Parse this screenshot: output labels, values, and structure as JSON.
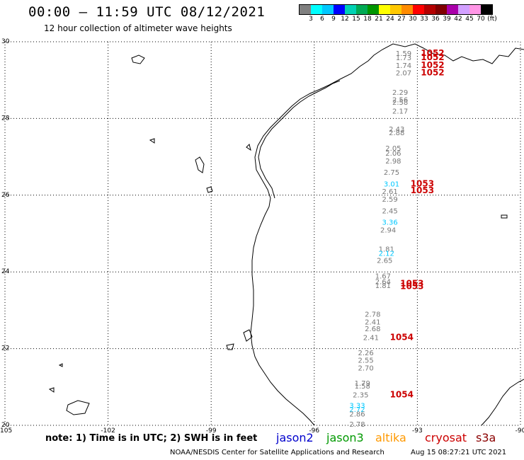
{
  "header": {
    "title": "00:00 – 11:59 UTC 08/12/2021",
    "subtitle": "12 hour collection of altimeter wave heights"
  },
  "legend": {
    "colors": [
      "#808080",
      "#00ffff",
      "#00c8ff",
      "#0000ff",
      "#00d2b4",
      "#00aa55",
      "#009600",
      "#ffff00",
      "#ffc800",
      "#ff8c00",
      "#ff0000",
      "#b40000",
      "#800000",
      "#aa00aa",
      "#d2a0ff",
      "#ff96e6",
      "#000000"
    ],
    "labels": [
      "3",
      "6",
      "9",
      "12",
      "15",
      "18",
      "21",
      "24",
      "27",
      "30",
      "33",
      "36",
      "39",
      "42",
      "45",
      "70"
    ],
    "unit": "(ft)"
  },
  "axes": {
    "lon_ticks": [
      "-105",
      "-102",
      "-99",
      "-96",
      "-93",
      "-90"
    ],
    "lat_ticks": [
      "30",
      "28",
      "26",
      "24",
      "22",
      "20"
    ]
  },
  "observations": [
    {
      "lon": -93.4,
      "lat": 29.63,
      "text": "1.59",
      "sat": "gray"
    },
    {
      "lon": -93.4,
      "lat": 29.52,
      "text": "1.73",
      "sat": "gray"
    },
    {
      "lon": -93.4,
      "lat": 29.32,
      "text": "1.74",
      "sat": "gray"
    },
    {
      "lon": -93.4,
      "lat": 29.12,
      "text": "2.07",
      "sat": "gray"
    },
    {
      "lon": -93.5,
      "lat": 28.62,
      "text": "2.29",
      "sat": "gray"
    },
    {
      "lon": -93.5,
      "lat": 28.42,
      "text": "2.56",
      "sat": "gray"
    },
    {
      "lon": -93.5,
      "lat": 28.36,
      "text": "2.58",
      "sat": "gray"
    },
    {
      "lon": -93.5,
      "lat": 28.13,
      "text": "2.17",
      "sat": "gray"
    },
    {
      "lon": -93.6,
      "lat": 27.66,
      "text": "2.43",
      "sat": "gray"
    },
    {
      "lon": -93.6,
      "lat": 27.56,
      "text": "2.88",
      "sat": "gray"
    },
    {
      "lon": -93.7,
      "lat": 27.16,
      "text": "2.05",
      "sat": "gray"
    },
    {
      "lon": -93.7,
      "lat": 27.03,
      "text": "2.06",
      "sat": "gray"
    },
    {
      "lon": -93.7,
      "lat": 26.83,
      "text": "2.98",
      "sat": "gray"
    },
    {
      "lon": -93.75,
      "lat": 26.53,
      "text": "2.75",
      "sat": "gray"
    },
    {
      "lon": -93.75,
      "lat": 26.23,
      "text": "3.01",
      "sat": "jason3"
    },
    {
      "lon": -93.8,
      "lat": 26.03,
      "text": "2.61",
      "sat": "gray"
    },
    {
      "lon": -93.8,
      "lat": 25.83,
      "text": "2.59",
      "sat": "gray"
    },
    {
      "lon": -93.8,
      "lat": 25.53,
      "text": "2.45",
      "sat": "gray"
    },
    {
      "lon": -93.8,
      "lat": 25.23,
      "text": "3.36",
      "sat": "jason3"
    },
    {
      "lon": -93.85,
      "lat": 25.03,
      "text": "2.94",
      "sat": "gray"
    },
    {
      "lon": -93.9,
      "lat": 24.53,
      "text": "1.81",
      "sat": "gray"
    },
    {
      "lon": -93.9,
      "lat": 24.42,
      "text": "2.12",
      "sat": "jason3"
    },
    {
      "lon": -93.95,
      "lat": 24.23,
      "text": "2.65",
      "sat": "gray"
    },
    {
      "lon": -94.0,
      "lat": 23.83,
      "text": "1.67",
      "sat": "gray"
    },
    {
      "lon": -94.0,
      "lat": 23.68,
      "text": "2.64",
      "sat": "gray"
    },
    {
      "lon": -94.0,
      "lat": 23.58,
      "text": "1.81",
      "sat": "gray"
    },
    {
      "lon": -94.3,
      "lat": 22.83,
      "text": "2.78",
      "sat": "gray"
    },
    {
      "lon": -94.3,
      "lat": 22.63,
      "text": "2.41",
      "sat": "gray"
    },
    {
      "lon": -94.3,
      "lat": 22.45,
      "text": "2.68",
      "sat": "gray"
    },
    {
      "lon": -94.35,
      "lat": 22.22,
      "text": "2.41",
      "sat": "gray"
    },
    {
      "lon": -94.5,
      "lat": 21.83,
      "text": "2.26",
      "sat": "gray"
    },
    {
      "lon": -94.5,
      "lat": 21.63,
      "text": "2.55",
      "sat": "gray"
    },
    {
      "lon": -94.5,
      "lat": 21.43,
      "text": "2.70",
      "sat": "gray"
    },
    {
      "lon": -94.6,
      "lat": 21.03,
      "text": "1.79",
      "sat": "gray"
    },
    {
      "lon": -94.6,
      "lat": 20.96,
      "text": "1.58",
      "sat": "gray"
    },
    {
      "lon": -94.65,
      "lat": 20.73,
      "text": "2.35",
      "sat": "gray"
    },
    {
      "lon": -94.75,
      "lat": 20.45,
      "text": "3.33",
      "sat": "jason3"
    },
    {
      "lon": -94.75,
      "lat": 20.35,
      "text": "2.72",
      "sat": "jason3"
    },
    {
      "lon": -94.75,
      "lat": 20.23,
      "text": "2.86",
      "sat": "gray"
    },
    {
      "lon": -94.75,
      "lat": 19.96,
      "text": "2.78",
      "sat": "gray"
    }
  ],
  "labels_red": [
    {
      "lon": -92.9,
      "lat": 29.63,
      "text": "1052"
    },
    {
      "lon": -92.9,
      "lat": 29.52,
      "text": "1052"
    },
    {
      "lon": -92.9,
      "lat": 29.32,
      "text": "1052"
    },
    {
      "lon": -92.9,
      "lat": 29.12,
      "text": "1052"
    },
    {
      "lon": -93.2,
      "lat": 26.23,
      "text": "1053"
    },
    {
      "lon": -93.2,
      "lat": 26.05,
      "text": "1053"
    },
    {
      "lon": -93.5,
      "lat": 23.63,
      "text": "1053"
    },
    {
      "lon": -93.5,
      "lat": 23.55,
      "text": "1053"
    },
    {
      "lon": -93.8,
      "lat": 22.22,
      "text": "1054"
    },
    {
      "lon": -93.8,
      "lat": 20.73,
      "text": "1054"
    }
  ],
  "satellites": [
    {
      "name": "jason2",
      "color": "#0000cc"
    },
    {
      "name": "jason3",
      "color": "#009900"
    },
    {
      "name": "altika",
      "color": "#ff9900"
    },
    {
      "name": "cryosat",
      "color": "#cc0000"
    },
    {
      "name": "s3a",
      "color": "#8b0000"
    }
  ],
  "footer": {
    "note": "note: 1) Time is in UTC; 2) SWH is in feet",
    "credit": "NOAA/NESDIS Center for Satellite Applications and Research",
    "timestamp": "Aug 15 08:27:21 UTC 2021"
  }
}
